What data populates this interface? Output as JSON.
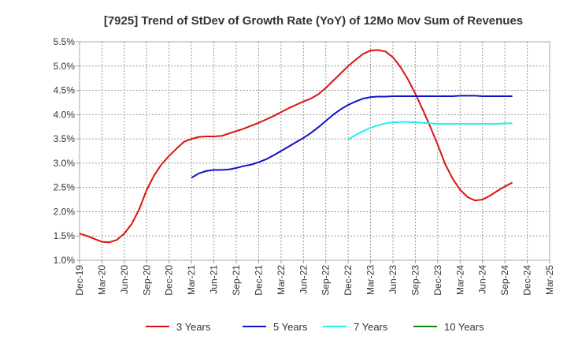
{
  "chart_data": {
    "type": "line",
    "title": "[7925]  Trend of StDev of Growth Rate (YoY) of 12Mo Mov Sum of Revenues",
    "xlabel": "",
    "ylabel": "",
    "ylim": [
      1.0,
      5.5
    ],
    "y_ticks": [
      "1.0%",
      "1.5%",
      "2.0%",
      "2.5%",
      "3.0%",
      "3.5%",
      "4.0%",
      "4.5%",
      "5.0%",
      "5.5%"
    ],
    "x_ticks": [
      "Dec-19",
      "Mar-20",
      "Jun-20",
      "Sep-20",
      "Dec-20",
      "Mar-21",
      "Jun-21",
      "Sep-21",
      "Dec-21",
      "Mar-22",
      "Jun-22",
      "Sep-22",
      "Dec-22",
      "Mar-23",
      "Jun-23",
      "Sep-23",
      "Dec-23",
      "Mar-24",
      "Jun-24",
      "Sep-24",
      "Dec-24",
      "Mar-25"
    ],
    "grid": true,
    "legend_position": "bottom",
    "series": [
      {
        "name": "3 Years",
        "color": "#dd1111",
        "points": [
          [
            0,
            1.55
          ],
          [
            1,
            1.5
          ],
          [
            2,
            1.44
          ],
          [
            3,
            1.38
          ],
          [
            4,
            1.37
          ],
          [
            5,
            1.42
          ],
          [
            6,
            1.55
          ],
          [
            7,
            1.75
          ],
          [
            8,
            2.05
          ],
          [
            9,
            2.45
          ],
          [
            10,
            2.75
          ],
          [
            11,
            2.98
          ],
          [
            12,
            3.15
          ],
          [
            13,
            3.3
          ],
          [
            14,
            3.44
          ],
          [
            15,
            3.5
          ],
          [
            16,
            3.54
          ],
          [
            17,
            3.55
          ],
          [
            18,
            3.55
          ],
          [
            19,
            3.56
          ],
          [
            20,
            3.61
          ],
          [
            21,
            3.66
          ],
          [
            22,
            3.71
          ],
          [
            23,
            3.77
          ],
          [
            24,
            3.83
          ],
          [
            25,
            3.9
          ],
          [
            26,
            3.97
          ],
          [
            27,
            4.05
          ],
          [
            28,
            4.13
          ],
          [
            29,
            4.2
          ],
          [
            30,
            4.27
          ],
          [
            31,
            4.33
          ],
          [
            32,
            4.42
          ],
          [
            33,
            4.55
          ],
          [
            34,
            4.7
          ],
          [
            35,
            4.85
          ],
          [
            36,
            5.0
          ],
          [
            37,
            5.13
          ],
          [
            38,
            5.25
          ],
          [
            39,
            5.32
          ],
          [
            40,
            5.33
          ],
          [
            41,
            5.3
          ],
          [
            42,
            5.18
          ],
          [
            43,
            4.98
          ],
          [
            44,
            4.73
          ],
          [
            45,
            4.43
          ],
          [
            46,
            4.1
          ],
          [
            47,
            3.75
          ],
          [
            48,
            3.38
          ],
          [
            49,
            2.98
          ],
          [
            50,
            2.68
          ],
          [
            51,
            2.45
          ],
          [
            52,
            2.3
          ],
          [
            53,
            2.23
          ],
          [
            54,
            2.25
          ],
          [
            55,
            2.33
          ],
          [
            56,
            2.43
          ],
          [
            57,
            2.52
          ],
          [
            58,
            2.6
          ]
        ]
      },
      {
        "name": "5 Years",
        "color": "#1111cc",
        "points": [
          [
            15,
            2.7
          ],
          [
            16,
            2.79
          ],
          [
            17,
            2.84
          ],
          [
            18,
            2.86
          ],
          [
            19,
            2.86
          ],
          [
            20,
            2.87
          ],
          [
            21,
            2.9
          ],
          [
            22,
            2.94
          ],
          [
            23,
            2.97
          ],
          [
            24,
            3.02
          ],
          [
            25,
            3.08
          ],
          [
            26,
            3.16
          ],
          [
            27,
            3.25
          ],
          [
            28,
            3.34
          ],
          [
            29,
            3.43
          ],
          [
            30,
            3.52
          ],
          [
            31,
            3.62
          ],
          [
            32,
            3.74
          ],
          [
            33,
            3.87
          ],
          [
            34,
            4.0
          ],
          [
            35,
            4.11
          ],
          [
            36,
            4.2
          ],
          [
            37,
            4.27
          ],
          [
            38,
            4.33
          ],
          [
            39,
            4.36
          ],
          [
            40,
            4.37
          ],
          [
            41,
            4.37
          ],
          [
            42,
            4.38
          ],
          [
            43,
            4.38
          ],
          [
            44,
            4.38
          ],
          [
            45,
            4.38
          ],
          [
            46,
            4.38
          ],
          [
            47,
            4.38
          ],
          [
            48,
            4.38
          ],
          [
            49,
            4.38
          ],
          [
            50,
            4.38
          ],
          [
            51,
            4.39
          ],
          [
            52,
            4.39
          ],
          [
            53,
            4.39
          ],
          [
            54,
            4.38
          ],
          [
            55,
            4.38
          ],
          [
            56,
            4.38
          ],
          [
            57,
            4.38
          ],
          [
            58,
            4.38
          ]
        ]
      },
      {
        "name": "7 Years",
        "color": "#22eeee",
        "points": [
          [
            36,
            3.49
          ],
          [
            37,
            3.58
          ],
          [
            38,
            3.66
          ],
          [
            39,
            3.73
          ],
          [
            40,
            3.78
          ],
          [
            41,
            3.82
          ],
          [
            42,
            3.84
          ],
          [
            43,
            3.85
          ],
          [
            44,
            3.85
          ],
          [
            45,
            3.84
          ],
          [
            46,
            3.83
          ],
          [
            47,
            3.82
          ],
          [
            48,
            3.81
          ],
          [
            49,
            3.81
          ],
          [
            50,
            3.81
          ],
          [
            51,
            3.81
          ],
          [
            52,
            3.81
          ],
          [
            53,
            3.81
          ],
          [
            54,
            3.81
          ],
          [
            55,
            3.81
          ],
          [
            56,
            3.81
          ],
          [
            57,
            3.82
          ],
          [
            58,
            3.82
          ]
        ]
      },
      {
        "name": "10 Years",
        "color": "#118811",
        "points": []
      }
    ]
  }
}
